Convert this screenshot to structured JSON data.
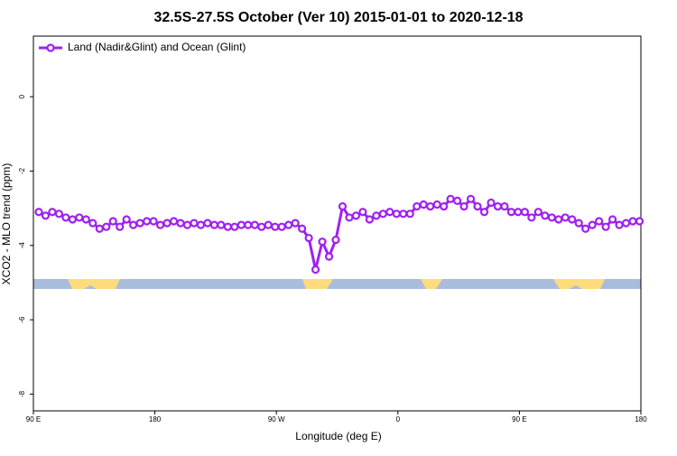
{
  "chart_data": {
    "type": "line",
    "title": "32.5S-27.5S October (Ver 10)   2015-01-01 to 2020-12-18",
    "xlabel": "Longitude (deg E)",
    "ylabel": "XCO2 - MLO trend (ppm)",
    "xlim": [
      90,
      540
    ],
    "xticks": [
      {
        "value": 90,
        "label": "90 E"
      },
      180,
      {
        "value": 270,
        "label": "90 W"
      },
      {
        "value": 360,
        "label": "0"
      },
      {
        "value": 450,
        "label": "90 E"
      },
      {
        "value": 540,
        "label": "180"
      }
    ],
    "ylim": [
      -8.45,
      1.63
    ],
    "yticks": [
      0,
      -2,
      -4,
      -6,
      -8
    ],
    "legend": "top-left",
    "x": [
      94,
      99,
      104,
      109,
      114,
      119,
      124,
      129,
      134,
      139,
      144,
      149,
      154,
      159,
      164,
      169,
      174,
      179,
      184,
      189,
      194,
      199,
      204,
      209,
      214,
      219,
      224,
      229,
      234,
      239,
      244,
      249,
      254,
      259,
      264,
      269,
      274,
      279,
      284,
      289,
      294,
      299,
      304,
      309,
      314,
      319,
      324,
      329,
      334,
      339,
      344,
      349,
      354,
      359,
      364,
      369,
      374,
      379,
      384,
      389,
      394,
      399,
      404,
      409,
      414,
      419,
      424,
      429,
      434,
      439,
      444,
      449,
      454,
      459,
      464,
      469,
      474,
      479,
      484,
      489,
      494,
      499,
      504,
      509,
      514,
      519,
      524,
      529,
      534,
      539
    ],
    "series": [
      {
        "name": "Land (Nadir&Glint) and Ocean (Glint)",
        "color": "#a020f0",
        "values": [
          -3.1,
          -3.2,
          -3.1,
          -3.15,
          -3.25,
          -3.3,
          -3.25,
          -3.3,
          -3.4,
          -3.55,
          -3.5,
          -3.35,
          -3.5,
          -3.3,
          -3.45,
          -3.4,
          -3.35,
          -3.35,
          -3.45,
          -3.4,
          -3.35,
          -3.4,
          -3.45,
          -3.4,
          -3.45,
          -3.4,
          -3.45,
          -3.45,
          -3.5,
          -3.5,
          -3.45,
          -3.45,
          -3.45,
          -3.5,
          -3.45,
          -3.5,
          -3.5,
          -3.45,
          -3.4,
          -3.55,
          -3.8,
          -4.65,
          -3.9,
          -4.3,
          -3.85,
          -2.95,
          -3.25,
          -3.2,
          -3.1,
          -3.3,
          -3.2,
          -3.15,
          -3.1,
          -3.15,
          -3.15,
          -3.15,
          -2.95,
          -2.9,
          -2.95,
          -2.9,
          -2.95,
          -2.75,
          -2.8,
          -2.95,
          -2.75,
          -2.95,
          -3.1,
          -2.85,
          -2.95,
          -2.95,
          -3.1,
          -3.1,
          -3.1,
          -3.25,
          -3.1,
          -3.2,
          -3.25,
          -3.3,
          -3.25,
          -3.3,
          -3.4,
          -3.55,
          -3.45,
          -3.35,
          -3.5,
          -3.3,
          -3.45,
          -3.4,
          -3.35,
          -3.35
        ]
      }
    ]
  }
}
